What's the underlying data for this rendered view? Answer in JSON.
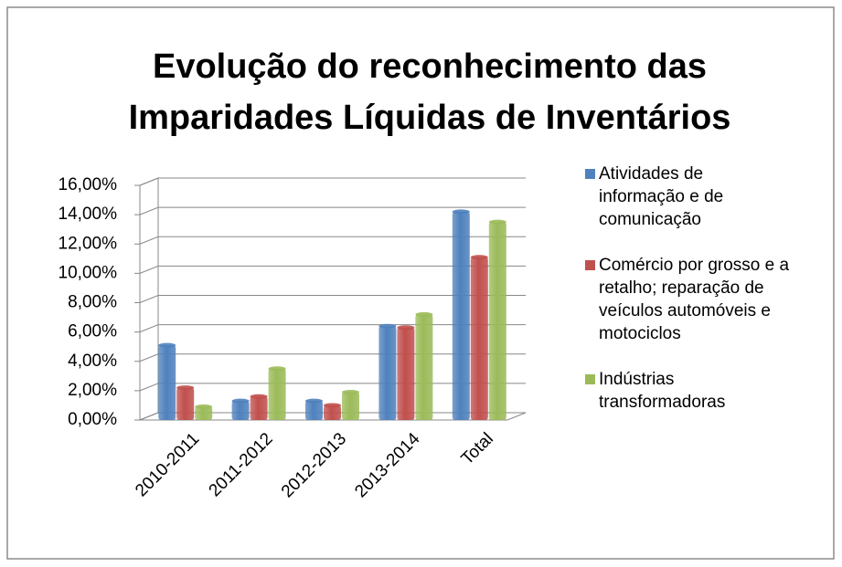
{
  "chart_data": {
    "type": "bar3d",
    "title": "Evolução do reconhecimento das Imparidades Líquidas de Inventários",
    "categories": [
      "2010-2011",
      "2011-2012",
      "2012-2013",
      "2013-2014",
      "Total"
    ],
    "series": [
      {
        "name": "Atividades de informação e de comunicação",
        "color": "#4f81bd",
        "values": [
          5.1,
          1.3,
          1.3,
          6.4,
          14.2
        ]
      },
      {
        "name": "Comércio por grosso e a retalho; reparação de veículos automóveis e motociclos",
        "color": "#c0504d",
        "values": [
          2.2,
          1.6,
          1.0,
          6.3,
          11.1
        ]
      },
      {
        "name": "Indústrias transformadoras",
        "color": "#9bbb59",
        "values": [
          0.9,
          3.5,
          1.9,
          7.2,
          13.5
        ]
      }
    ],
    "ylim": [
      0,
      16
    ],
    "yticks": [
      {
        "value": 0,
        "label": "0,00%"
      },
      {
        "value": 2,
        "label": "2,00%"
      },
      {
        "value": 4,
        "label": "4,00%"
      },
      {
        "value": 6,
        "label": "6,00%"
      },
      {
        "value": 8,
        "label": "8,00%"
      },
      {
        "value": 10,
        "label": "10,00%"
      },
      {
        "value": 12,
        "label": "12,00%"
      },
      {
        "value": 14,
        "label": "14,00%"
      },
      {
        "value": 16,
        "label": "16,00%"
      }
    ],
    "grid": true,
    "legend": "right"
  }
}
